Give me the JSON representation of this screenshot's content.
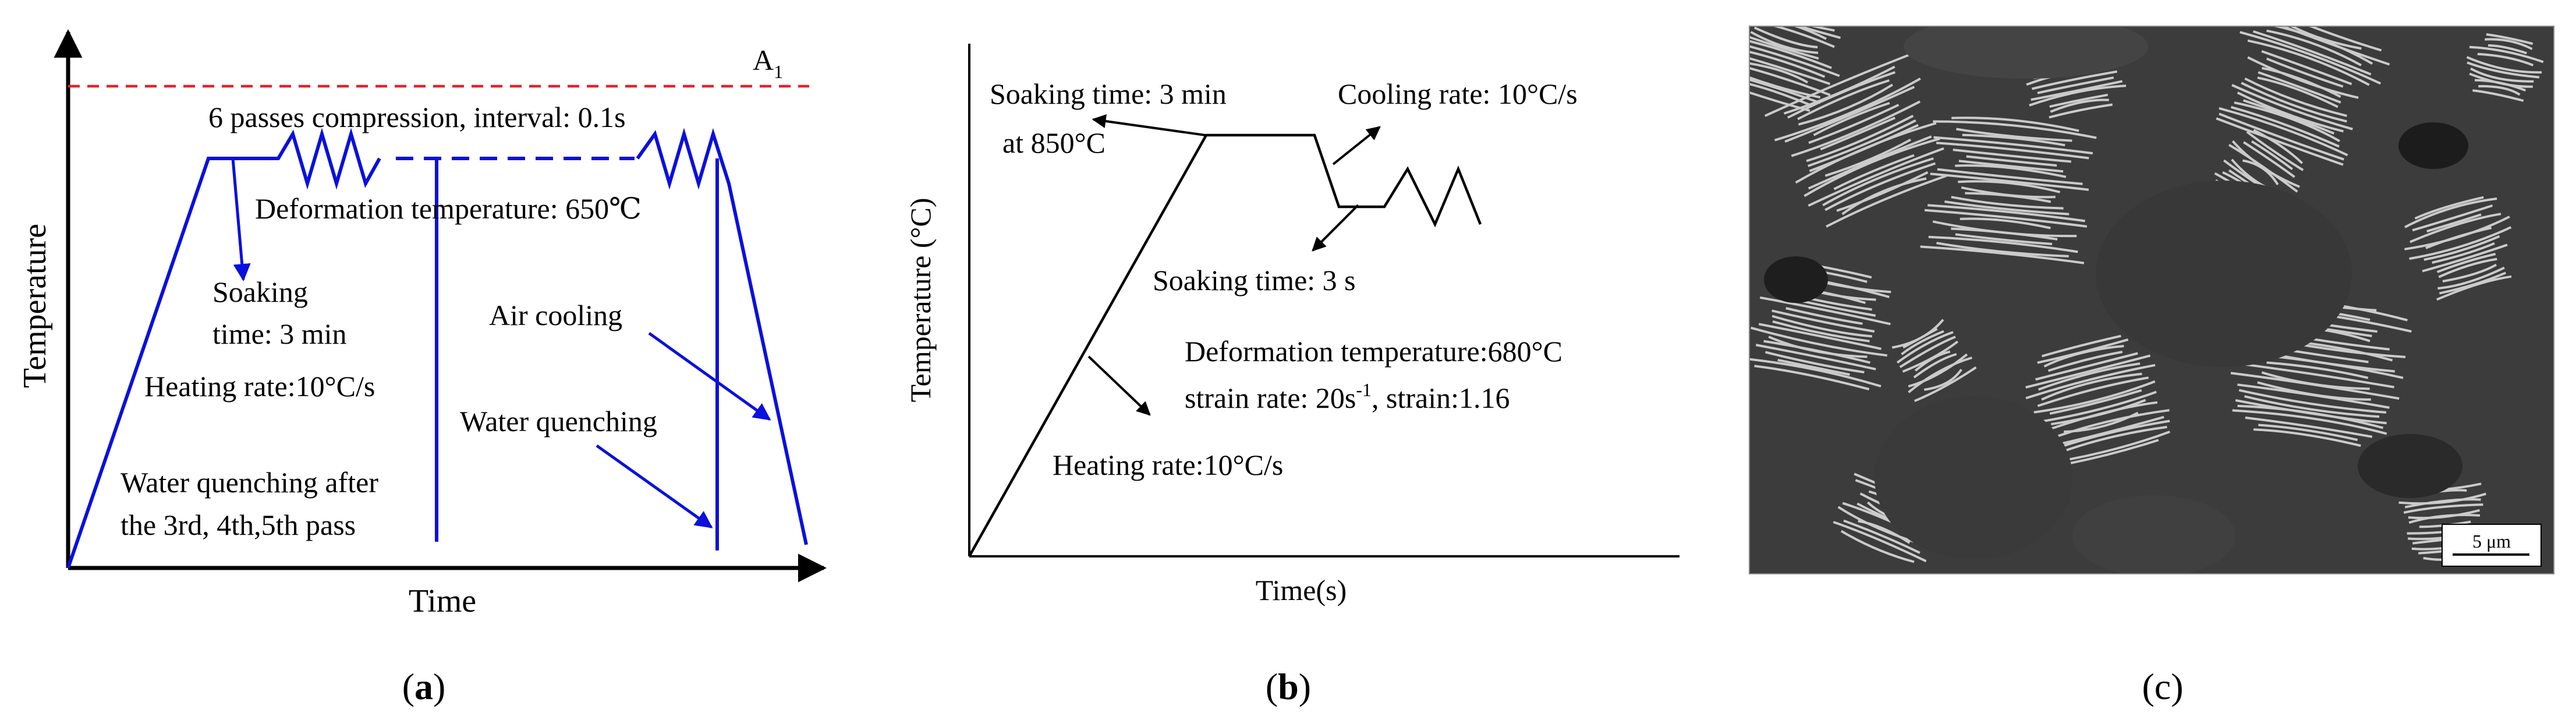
{
  "colors": {
    "schedule_line": "#0a10dd",
    "a1_line": "#e8202a",
    "axis": "#000000",
    "micrograph_dark": "#3c3c3c",
    "micrograph_light": "#d8d8d8"
  },
  "panel_a": {
    "axis": {
      "ylabel": "Temperature",
      "xlabel": "Time"
    },
    "a1_label": {
      "letter": "A",
      "sub": "1"
    },
    "labels": {
      "compression": "6 passes compression, interval: 0.1s",
      "deformation": "Deformation temperature: 650℃",
      "soaking_1": "Soaking",
      "soaking_2": "time: 3 min",
      "heating": "Heating rate:10°C/s",
      "air_cooling": "Air cooling",
      "water_quenching": "Water quenching",
      "wq_after_1": "Water quenching after",
      "wq_after_2": "the 3rd, 4th,5th pass"
    },
    "caption": "a"
  },
  "panel_b": {
    "axis": {
      "ylabel": "Temperature (°C)",
      "xlabel": "Time(s)"
    },
    "labels": {
      "soak_1": "Soaking time: 3 min",
      "soak_2": "at 850°C",
      "cooling": "Cooling rate: 10°C/s",
      "soak_short": "Soaking time: 3 s",
      "deformation": "Deformation temperature:680°C",
      "strain_pre": "strain rate: 20s",
      "strain_sup": "-1",
      "strain_post": ", strain:1.16",
      "heating": "Heating rate:10°C/s"
    },
    "caption": "b"
  },
  "panel_c": {
    "scale_bar": "5 μm",
    "caption": "c"
  }
}
